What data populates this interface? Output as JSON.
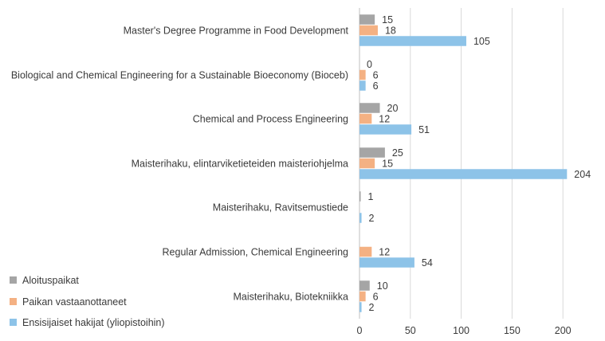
{
  "chart_data": {
    "type": "bar",
    "orientation": "horizontal",
    "categories": [
      "Master's Degree Programme in Food Development",
      "Biological and Chemical Engineering for a Sustainable Bioeconomy (Bioceb)",
      "Chemical and Process Engineering",
      "Maisterihaku, elintarviketieteiden maisteriohjelma",
      "Maisterihaku, Ravitsemustiede",
      "Regular Admission, Chemical Engineering",
      "Maisterihaku, Biotekniikka"
    ],
    "series": [
      {
        "name": "Aloituspaikat",
        "color": "#a5a5a5",
        "values": [
          15,
          0,
          20,
          25,
          1,
          null,
          10
        ]
      },
      {
        "name": "Paikan vastaanottaneet",
        "color": "#f4b183",
        "values": [
          18,
          6,
          12,
          15,
          null,
          12,
          6
        ]
      },
      {
        "name": "Ensisijaiset hakijat (yliopistoihin)",
        "color": "#8dc3e8",
        "values": [
          105,
          6,
          51,
          204,
          2,
          54,
          2
        ]
      }
    ],
    "xlim": [
      0,
      250
    ],
    "xticks": [
      0,
      50,
      100,
      150,
      200
    ],
    "tick_labels": [
      "0",
      "50",
      "100",
      "150",
      "200"
    ],
    "grid": true,
    "legend_position": "bottom-left",
    "title": "",
    "xlabel": "",
    "ylabel": ""
  }
}
